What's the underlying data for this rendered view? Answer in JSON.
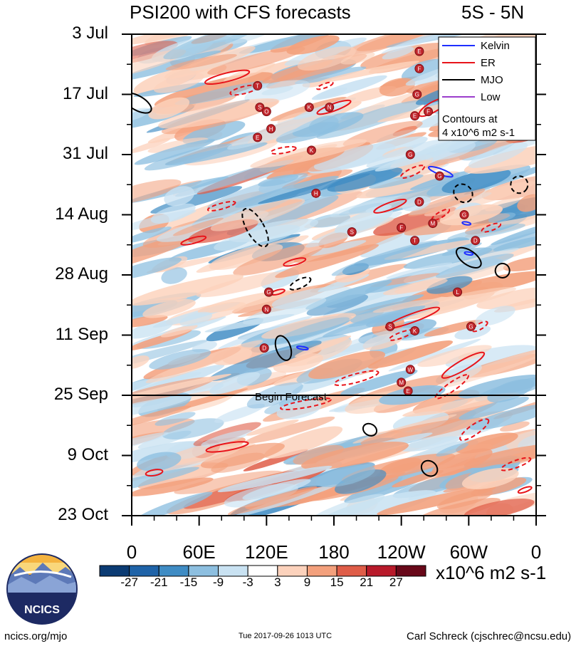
{
  "header": {
    "title": "PSI200 with CFS forecasts",
    "region": "5S - 5N"
  },
  "chart_data": {
    "type": "heatmap",
    "title": "PSI200 with CFS forecasts",
    "region": "5S - 5N",
    "y_tick_labels": [
      "3 Jul",
      "17 Jul",
      "31 Jul",
      "14 Aug",
      "28 Aug",
      "11 Sep",
      "25 Sep",
      "9 Oct",
      "23 Oct"
    ],
    "x_tick_labels": [
      "0",
      "60E",
      "120E",
      "180",
      "120W",
      "60W",
      "0"
    ],
    "x_range_deg_east": [
      0,
      360
    ],
    "y_range_days_from_3_jul": [
      0,
      112
    ],
    "forecast_start_day": 84,
    "annotation": "Begin Forecast",
    "colorbar": {
      "levels": [
        "-27",
        "-21",
        "-15",
        "-9",
        "-3",
        "3",
        "9",
        "15",
        "21",
        "27"
      ],
      "colors": [
        "#0b3b73",
        "#1f63a8",
        "#3f8cc4",
        "#8dbfe0",
        "#c9e2f2",
        "#ffffff",
        "#fcd2bc",
        "#f3a07c",
        "#df5d48",
        "#b81a2a",
        "#680819"
      ],
      "units": "x10^6 m2 s-1"
    },
    "legend": {
      "placement": "top-right",
      "entries": [
        {
          "label": "Kelvin",
          "color": "#1f2fff"
        },
        {
          "label": "ER",
          "color": "#e8141a"
        },
        {
          "label": "MJO",
          "color": "#000000"
        },
        {
          "label": "Low",
          "color": "#9b3dcc"
        }
      ],
      "note_line1": "Contours at",
      "note_line2": "4 x10^6 m2 s-1"
    },
    "storm_letters": [
      "E",
      "F",
      "T",
      "G",
      "S",
      "O",
      "K",
      "N",
      "H",
      "E",
      "G",
      "E",
      "F",
      "G",
      "K",
      "H",
      "D",
      "S",
      "F",
      "M",
      "G",
      "D",
      "T",
      "G",
      "N",
      "D",
      "S",
      "K",
      "M",
      "L",
      "G",
      "W",
      "E"
    ]
  },
  "footer": {
    "left": "ncics.org/mjo",
    "center": "Tue 2017-09-26 1013 UTC",
    "right": "Carl Schreck (cjschrec@ncsu.edu)",
    "logo_text": "NCICS"
  }
}
